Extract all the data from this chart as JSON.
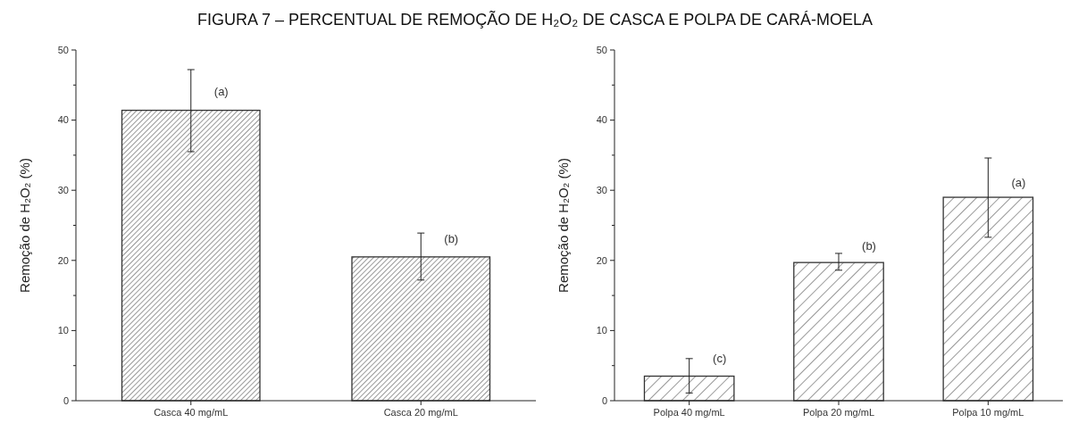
{
  "chart_data": [
    {
      "type": "bar",
      "title": "FIGURA 7 – PERCENTUAL DE REMOÇÃO DE H₂O₂ DE CASCA E POLPA DE CARÁ-MOELA",
      "ylabel": "Remoção de H₂O₂ (%)",
      "categories": [
        "Casca 40 mg/mL",
        "Casca 20 mg/mL"
      ],
      "values": [
        41.4,
        20.5
      ],
      "errors": [
        [
          35.5,
          47.2
        ],
        [
          17.2,
          23.9
        ]
      ],
      "color": "#333333",
      "ylim": [
        0,
        50
      ],
      "yticks": [
        0,
        {
          "value": 5,
          "label": null
        },
        10,
        {
          "value": 15,
          "label": null
        },
        20,
        {
          "value": 25,
          "label": null
        },
        30,
        {
          "value": 35,
          "label": null
        },
        40,
        {
          "value": 45,
          "label": null
        },
        50
      ],
      "grid": false,
      "annotations": [
        {
          "text": "(a)",
          "x": "Casca 40 mg/mL",
          "y": 43.5
        },
        {
          "text": "(b)",
          "x": "Casca 20 mg/mL",
          "y": 22.5
        }
      ]
    },
    {
      "type": "bar",
      "ylabel": "Remoção de H₂O₂ (%)",
      "categories": [
        "Polpa 40 mg/mL",
        "Polpa 20 mg/mL",
        "Polpa 10 mg/mL"
      ],
      "values": [
        3.5,
        19.7,
        29.0
      ],
      "errors": [
        [
          1.1,
          6.0
        ],
        [
          18.6,
          21.0
        ],
        [
          23.3,
          34.6
        ]
      ],
      "color": "#333333",
      "ylim": [
        0,
        50
      ],
      "yticks": [
        0,
        {
          "value": 5,
          "label": null
        },
        10,
        {
          "value": 15,
          "label": null
        },
        20,
        {
          "value": 25,
          "label": null
        },
        30,
        {
          "value": 35,
          "label": null
        },
        40,
        {
          "value": 45,
          "label": null
        },
        50
      ],
      "grid": false,
      "annotations": [
        {
          "text": "(c)",
          "x": "Polpa 40 mg/mL",
          "y": 5.5
        },
        {
          "text": "(b)",
          "x": "Polpa 20 mg/mL",
          "y": 21.5
        },
        {
          "text": "(a)",
          "x": "Polpa 10 mg/mL",
          "y": 30.5
        }
      ]
    }
  ]
}
